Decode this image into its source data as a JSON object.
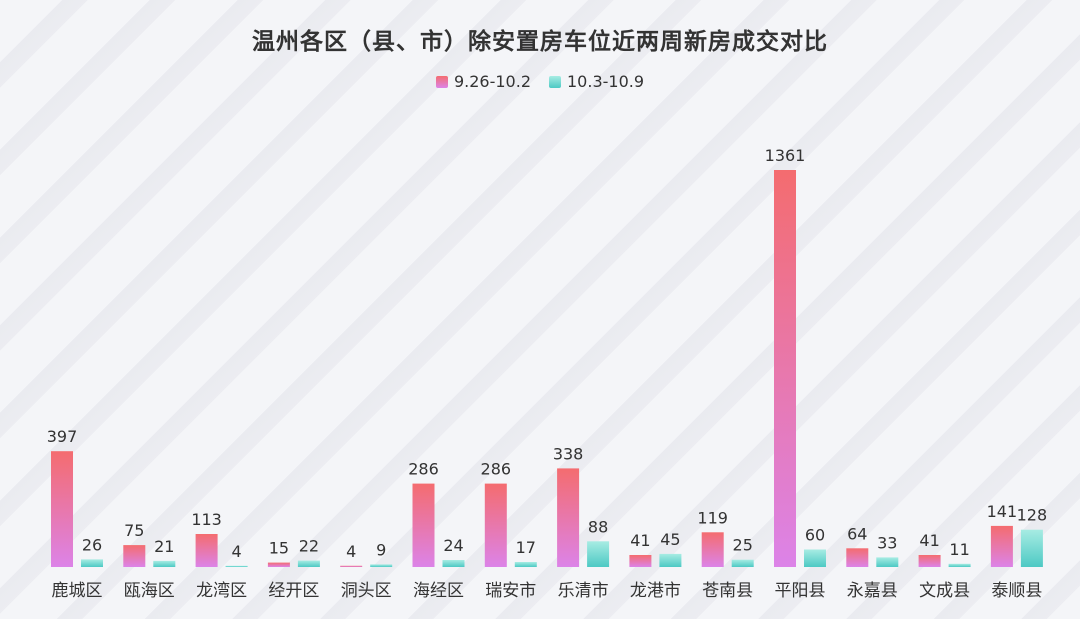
{
  "chart_data": {
    "type": "bar",
    "title": "温州各区（县、市）除安置房车位近两周新房成交对比",
    "categories": [
      "鹿城区",
      "瓯海区",
      "龙湾区",
      "经开区",
      "洞头区",
      "海经区",
      "瑞安市",
      "乐清市",
      "龙港市",
      "苍南县",
      "平阳县",
      "永嘉县",
      "文成县",
      "泰顺县"
    ],
    "series": [
      {
        "name": "9.26-10.2",
        "values": [
          397,
          75,
          113,
          15,
          4,
          286,
          286,
          338,
          41,
          119,
          1361,
          64,
          41,
          141
        ],
        "color_top": "#f46c6f",
        "color_bottom": "#dc83e8"
      },
      {
        "name": "10.3-10.9",
        "values": [
          26,
          21,
          4,
          22,
          9,
          24,
          17,
          88,
          45,
          25,
          60,
          33,
          11,
          128
        ],
        "color_top": "#a7ece3",
        "color_bottom": "#4dc9c4"
      }
    ],
    "xlabel": "",
    "ylabel": "",
    "ylim": [
      0,
      1400
    ],
    "grid": false,
    "legend_position": "top-center",
    "data_labels": true
  }
}
